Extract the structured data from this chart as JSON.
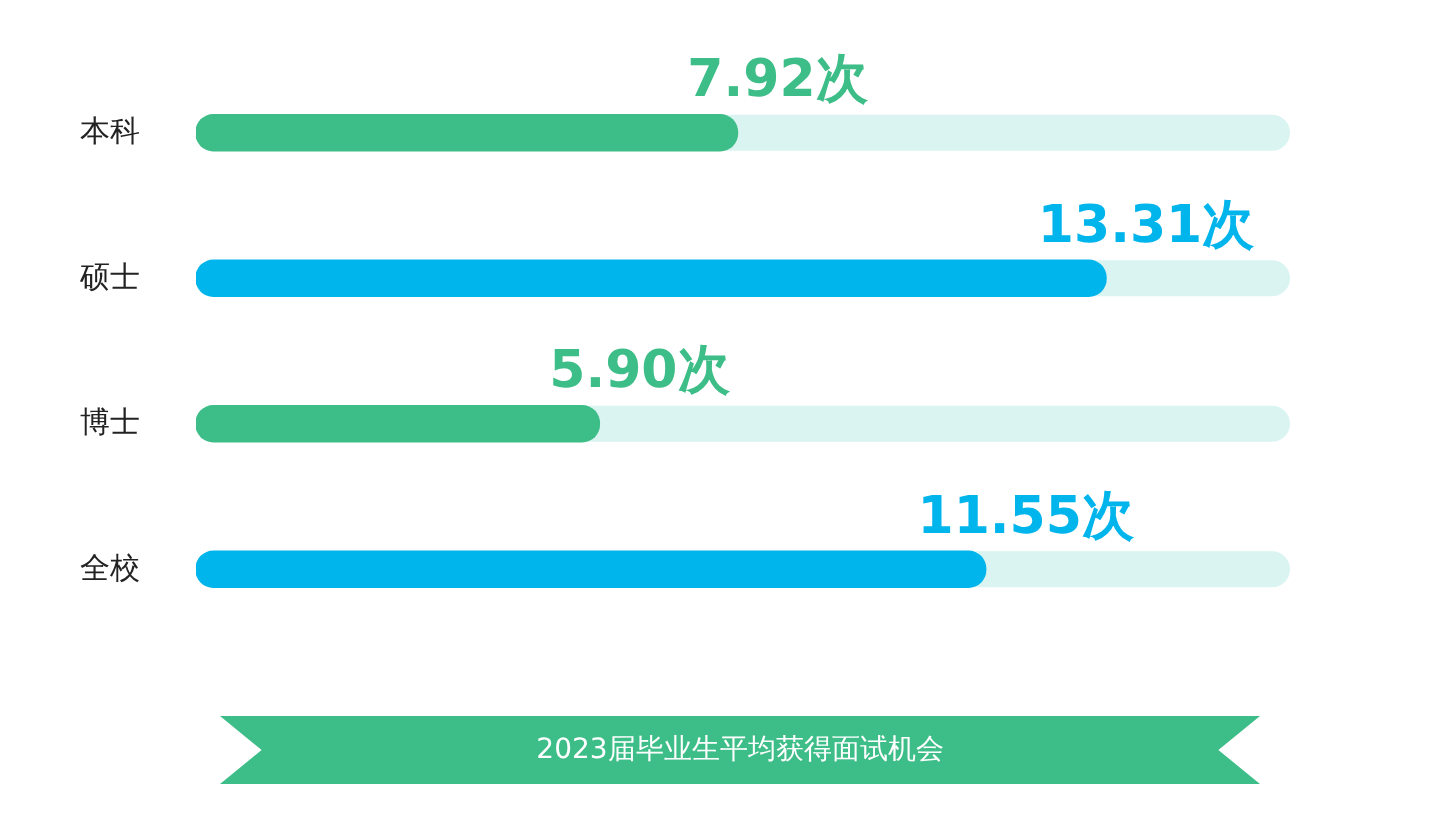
{
  "chart_data": {
    "type": "bar",
    "orientation": "horizontal",
    "title": "2023届毕业生平均获得面试机会",
    "categories": [
      "本科",
      "硕士",
      "博士",
      "全校"
    ],
    "values": [
      7.92,
      13.31,
      5.9,
      11.55
    ],
    "colors": [
      "#3dbd87",
      "#00b4ec",
      "#3dbd87",
      "#00b4ec"
    ],
    "value_labels": [
      "7.92次",
      "13.31次",
      "5.90次",
      "11.55次"
    ],
    "legend": false
  }
}
